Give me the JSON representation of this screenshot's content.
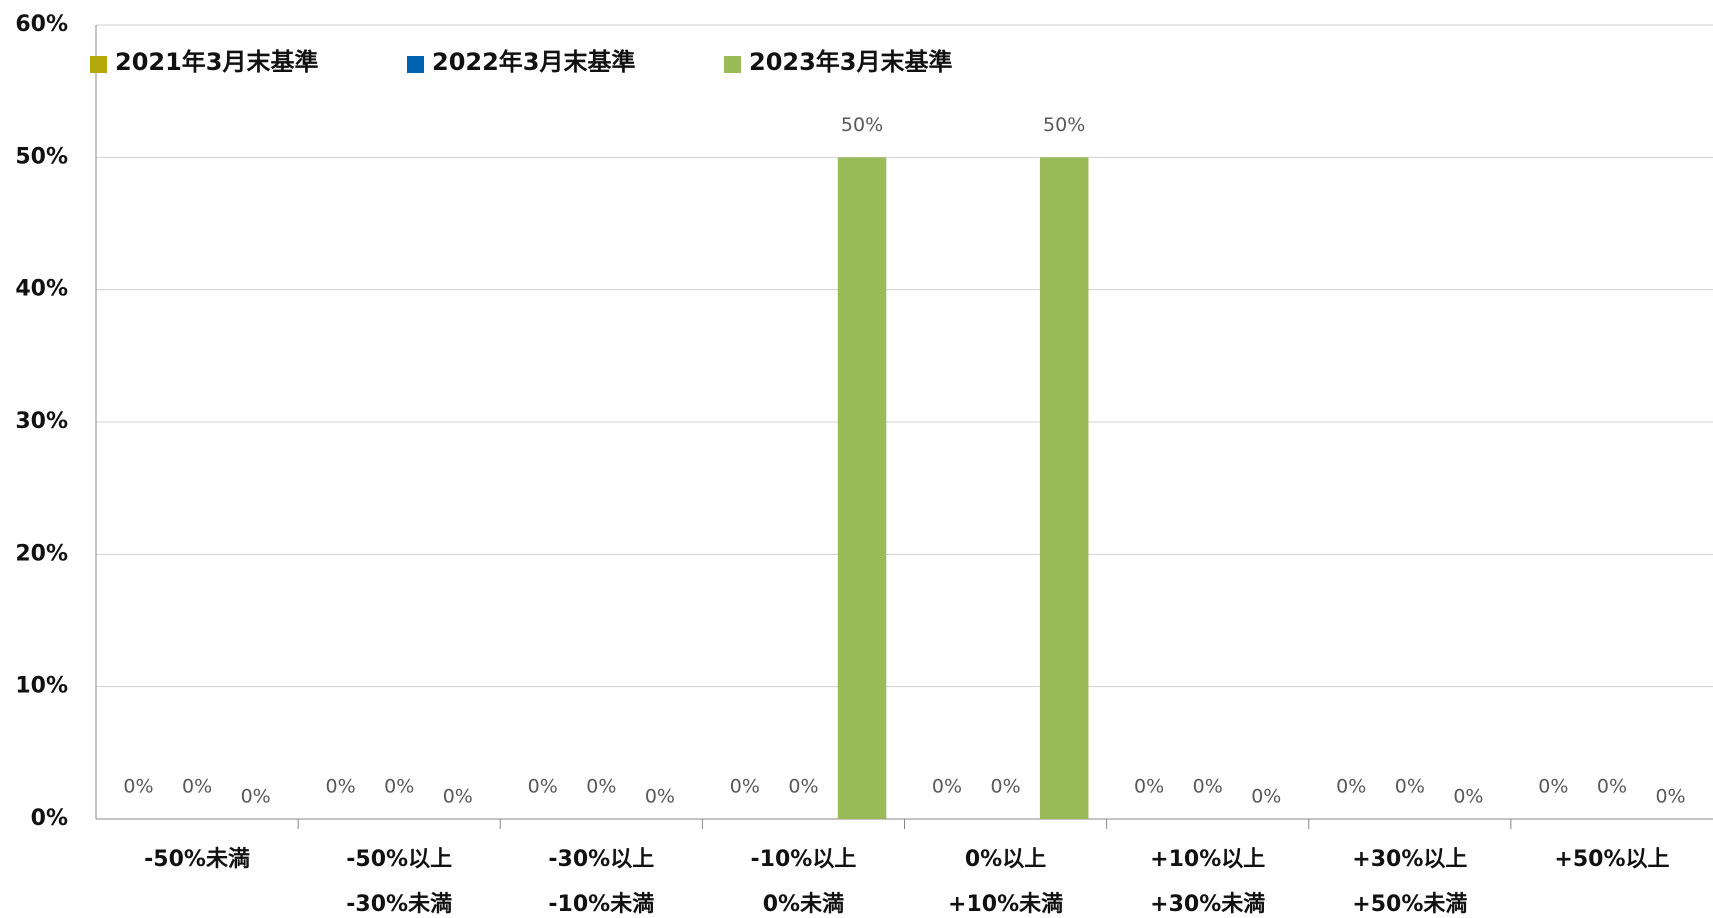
{
  "chart_data": {
    "type": "bar",
    "categories": [
      [
        "-50%未満"
      ],
      [
        "-50%以上",
        "-30%未満"
      ],
      [
        "-30%以上",
        "-10%未満"
      ],
      [
        "-10%以上",
        "0%未満"
      ],
      [
        "0%以上",
        "+10%未満"
      ],
      [
        "+10%以上",
        "+30%未満"
      ],
      [
        "+30%以上",
        "+50%未満"
      ],
      [
        "+50%以上"
      ]
    ],
    "series": [
      {
        "name": "2021年3月末基準",
        "color": "#b5a80b",
        "values": [
          0,
          0,
          0,
          0,
          0,
          0,
          0,
          0
        ],
        "value_labels": [
          "0%",
          "0%",
          "0%",
          "0%",
          "0%",
          "0%",
          "0%",
          "0%"
        ]
      },
      {
        "name": "2022年3月末基準",
        "color": "#0063b1",
        "values": [
          0,
          0,
          0,
          0,
          0,
          0,
          0,
          0
        ],
        "value_labels": [
          "0%",
          "0%",
          "0%",
          "0%",
          "0%",
          "0%",
          "0%",
          "0%"
        ]
      },
      {
        "name": "2023年3月末基準",
        "color": "#9bbb59",
        "values": [
          0,
          0,
          0,
          50,
          50,
          0,
          0,
          0
        ],
        "value_labels": [
          "0%",
          "0%",
          "0%",
          "50%",
          "50%",
          "0%",
          "0%",
          "0%"
        ]
      }
    ],
    "ylim": [
      0,
      60
    ],
    "yticks": [
      {
        "value": 0,
        "label": "0%"
      },
      {
        "value": 10,
        "label": "10%"
      },
      {
        "value": 20,
        "label": "20%"
      },
      {
        "value": 30,
        "label": "30%"
      },
      {
        "value": 40,
        "label": "40%"
      },
      {
        "value": 50,
        "label": "50%"
      },
      {
        "value": 60,
        "label": "60%"
      }
    ],
    "grid": true,
    "legend": "top-left"
  }
}
